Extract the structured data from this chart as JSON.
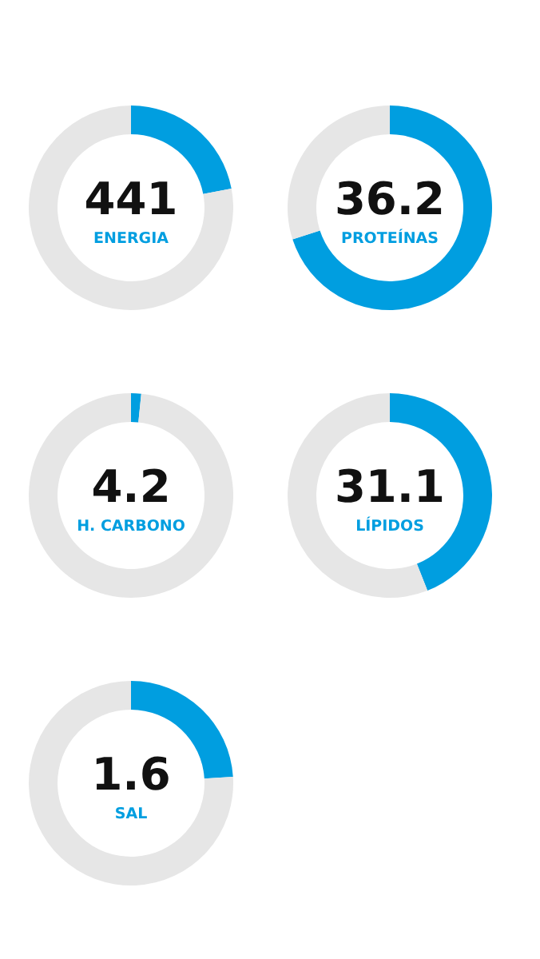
{
  "chart_data": [
    {
      "type": "donut",
      "title": "ENERGIA",
      "annotations": [
        "441"
      ],
      "categories": [
        null,
        null
      ],
      "values": [
        22,
        78
      ],
      "colors": [
        "#009ee0",
        "#e6e6e6"
      ]
    },
    {
      "type": "donut",
      "title": "PROTEÍNAS",
      "annotations": [
        "36.2"
      ],
      "categories": [
        null,
        null
      ],
      "values": [
        70,
        30
      ],
      "colors": [
        "#009ee0",
        "#e6e6e6"
      ]
    },
    {
      "type": "donut",
      "title": "H. CARBONO",
      "annotations": [
        "4.2"
      ],
      "categories": [
        null,
        null
      ],
      "values": [
        1.6,
        98.4
      ],
      "colors": [
        "#009ee0",
        "#e6e6e6"
      ]
    },
    {
      "type": "donut",
      "title": "LÍPIDOS",
      "annotations": [
        "31.1"
      ],
      "categories": [
        null,
        null
      ],
      "values": [
        44,
        56
      ],
      "colors": [
        "#009ee0",
        "#e6e6e6"
      ]
    },
    {
      "type": "donut",
      "title": "SAL",
      "annotations": [
        "1.6"
      ],
      "categories": [
        null,
        null
      ],
      "values": [
        24,
        76
      ],
      "colors": [
        "#009ee0",
        "#e6e6e6"
      ]
    }
  ]
}
